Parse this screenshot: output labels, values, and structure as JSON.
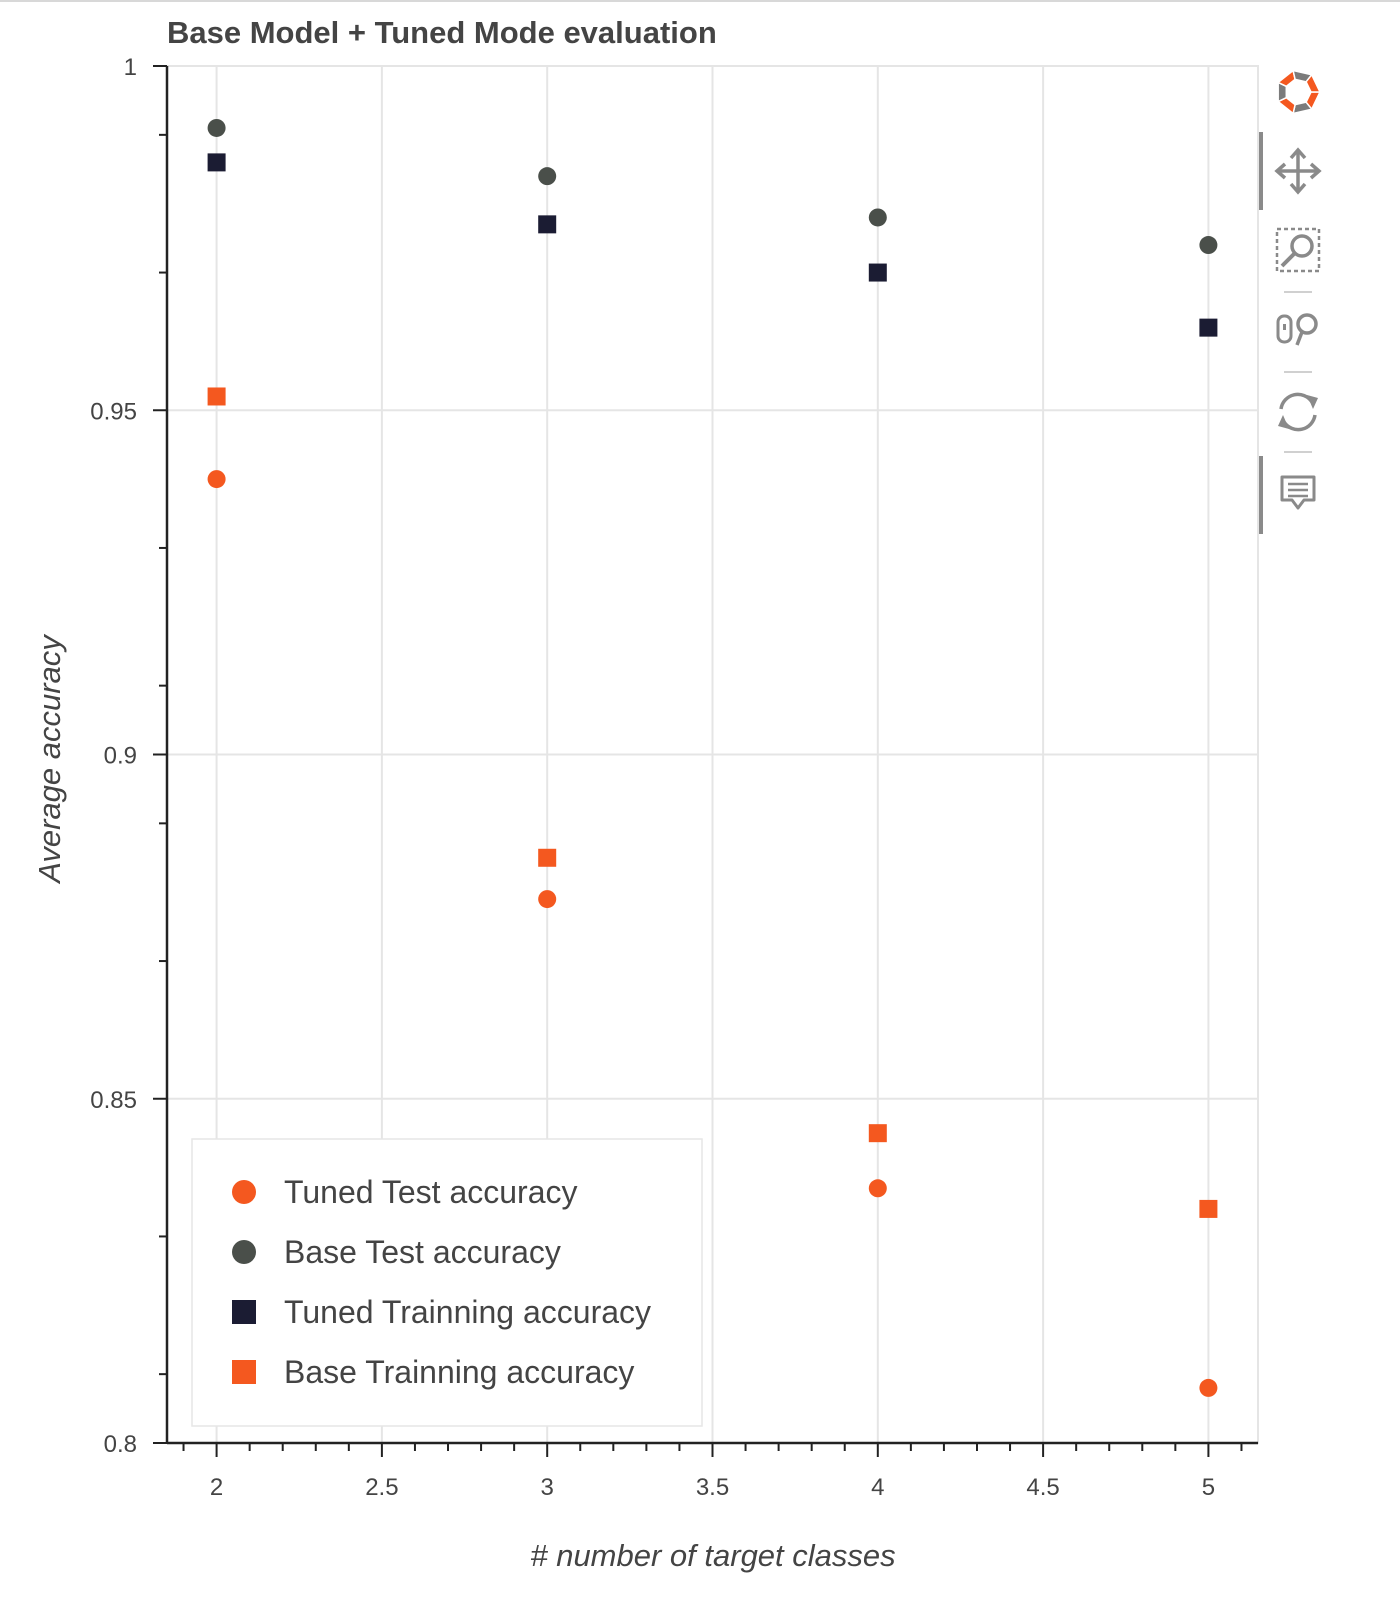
{
  "chart_data": {
    "type": "scatter",
    "title": "Base Model + Tuned Mode evaluation",
    "xlabel": "# number of target classes",
    "ylabel": "Average accuracy",
    "xlim": [
      1.85,
      5.15
    ],
    "ylim": [
      0.8,
      1.0
    ],
    "x_ticks": [
      2,
      2.5,
      3,
      3.5,
      4,
      4.5,
      5
    ],
    "x_tick_labels": [
      "2",
      "2.5",
      "3",
      "3.5",
      "4",
      "4.5",
      "5"
    ],
    "y_ticks": [
      0.8,
      0.85,
      0.9,
      0.95,
      1.0
    ],
    "y_tick_labels": [
      "0.8",
      "0.85",
      "0.9",
      "0.95",
      "1"
    ],
    "grid": true,
    "legend_position": "bottom-left",
    "series": [
      {
        "name": "Tuned Test accuracy",
        "marker": "circle",
        "color": "#f4581f",
        "x": [
          2,
          3,
          4,
          5
        ],
        "y": [
          0.94,
          0.879,
          0.837,
          0.808
        ]
      },
      {
        "name": "Base Test accuracy",
        "marker": "circle",
        "color": "#4a4f4a",
        "x": [
          2,
          3,
          4,
          5
        ],
        "y": [
          0.991,
          0.984,
          0.978,
          0.974
        ]
      },
      {
        "name": "Tuned Trainning accuracy",
        "marker": "square",
        "color": "#1b1c33",
        "x": [
          2,
          3,
          4,
          5
        ],
        "y": [
          0.986,
          0.977,
          0.97,
          0.962
        ]
      },
      {
        "name": "Base Trainning accuracy",
        "marker": "square",
        "color": "#f4581f",
        "x": [
          2,
          3,
          4,
          5
        ],
        "y": [
          0.952,
          0.885,
          0.845,
          0.834
        ]
      }
    ]
  },
  "toolbar": {
    "tools": [
      {
        "icon": "bokeh-logo-icon",
        "active": false
      },
      {
        "icon": "pan-icon",
        "active": true
      },
      {
        "icon": "box-zoom-icon",
        "active": false
      },
      {
        "icon": "wheel-zoom-icon",
        "active": false
      },
      {
        "icon": "reset-icon",
        "active": false
      },
      {
        "icon": "hover-icon",
        "active": true
      }
    ]
  }
}
